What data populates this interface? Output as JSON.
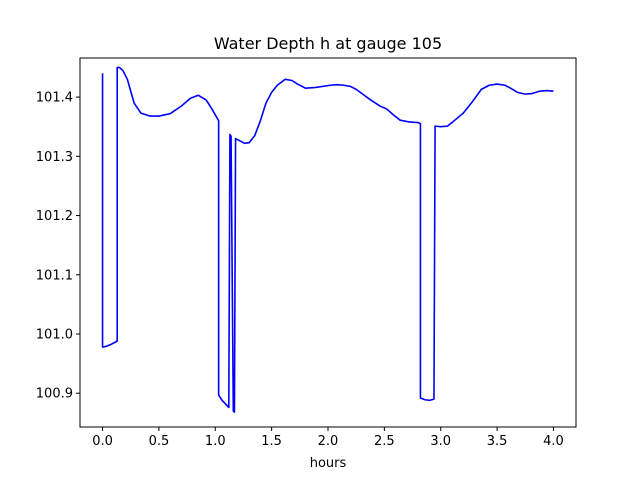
{
  "chart_data": {
    "type": "line",
    "title": "Water Depth h at gauge 105",
    "xlabel": "hours",
    "ylabel": "",
    "xlim": [
      -0.2,
      4.2
    ],
    "ylim": [
      100.843,
      101.466
    ],
    "xticks": [
      0.0,
      0.5,
      1.0,
      1.5,
      2.0,
      2.5,
      3.0,
      3.5,
      4.0
    ],
    "xtick_labels": [
      "0.0",
      "0.5",
      "1.0",
      "1.5",
      "2.0",
      "2.5",
      "3.0",
      "3.5",
      "4.0"
    ],
    "yticks": [
      100.9,
      101.0,
      101.1,
      101.2,
      101.3,
      101.4
    ],
    "ytick_labels": [
      "100.9",
      "101.0",
      "101.1",
      "101.2",
      "101.3",
      "101.4"
    ],
    "grid": false,
    "legend": "none",
    "series": [
      {
        "color": "#0000ff",
        "x": [
          0.0,
          0.0,
          0.03,
          0.07,
          0.13,
          0.13,
          0.15,
          0.18,
          0.22,
          0.28,
          0.34,
          0.42,
          0.5,
          0.6,
          0.7,
          0.78,
          0.85,
          0.92,
          0.97,
          1.03,
          1.03,
          1.06,
          1.1,
          1.12,
          1.13,
          1.14,
          1.16,
          1.17,
          1.18,
          1.22,
          1.26,
          1.3,
          1.35,
          1.4,
          1.45,
          1.5,
          1.55,
          1.62,
          1.68,
          1.73,
          1.8,
          1.88,
          1.95,
          2.02,
          2.08,
          2.14,
          2.2,
          2.25,
          2.3,
          2.38,
          2.46,
          2.52,
          2.58,
          2.64,
          2.72,
          2.8,
          2.82,
          2.82,
          2.86,
          2.9,
          2.94,
          2.95,
          2.95,
          3.0,
          3.06,
          3.1,
          3.15,
          3.2,
          3.28,
          3.36,
          3.43,
          3.5,
          3.57,
          3.62,
          3.68,
          3.75,
          3.81,
          3.88,
          3.94,
          4.0
        ],
        "y": [
          101.44,
          100.978,
          100.979,
          100.982,
          100.988,
          101.45,
          101.45,
          101.445,
          101.43,
          101.39,
          101.373,
          101.368,
          101.368,
          101.372,
          101.385,
          101.398,
          101.403,
          101.395,
          101.38,
          101.36,
          100.897,
          100.888,
          100.88,
          100.876,
          101.337,
          101.334,
          100.87,
          100.868,
          101.33,
          101.326,
          101.322,
          101.323,
          101.335,
          101.36,
          101.39,
          101.408,
          101.42,
          101.43,
          101.428,
          101.422,
          101.415,
          101.416,
          101.418,
          101.42,
          101.421,
          101.42,
          101.418,
          101.413,
          101.406,
          101.395,
          101.385,
          101.38,
          101.37,
          101.361,
          101.358,
          101.357,
          101.355,
          100.892,
          100.889,
          100.888,
          100.89,
          101.351,
          101.351,
          101.35,
          101.351,
          101.357,
          101.365,
          101.373,
          101.392,
          101.413,
          101.42,
          101.422,
          101.42,
          101.415,
          101.408,
          101.405,
          101.406,
          101.41,
          101.411,
          101.41
        ]
      }
    ]
  }
}
